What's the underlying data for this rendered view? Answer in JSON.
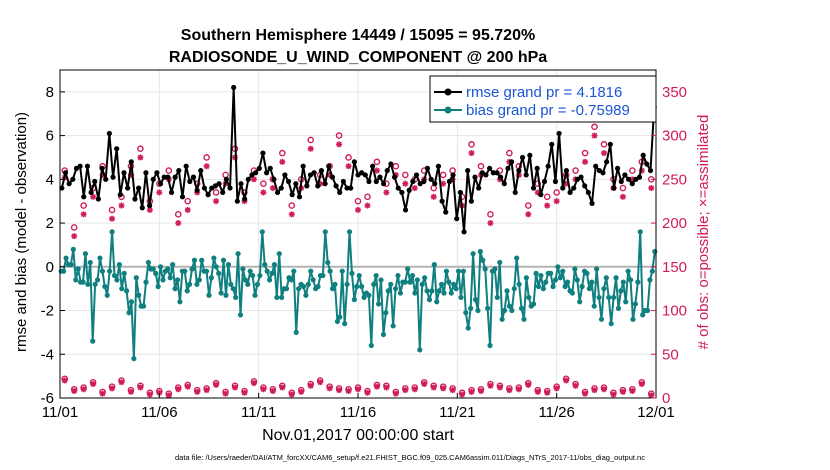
{
  "chart_data": {
    "type": "line",
    "title": "Southern Hemisphere 14449 / 15095 = 95.720%",
    "subtitle": "RADIOSONDE_U_WIND_COMPONENT @ 200 hPa",
    "xlabel": "Nov.01,2017 00:00:00 start",
    "ylabel": "rmse and bias (model - observation)",
    "y2label": "# of obs: o=possible; ×=assimilated",
    "footer": "data file: /Users/raeder/DAI/ATM_forcXX/CAM6_setup/f.e21.FHIST_BGC.f09_025.CAM6assim.011/Diags_NTrS_2017-11/obs_diag_output.nc",
    "xlim": [
      0,
      30
    ],
    "ylim": [
      -6,
      9
    ],
    "y2lim": [
      0,
      375
    ],
    "x_tick_values": [
      0,
      5,
      10,
      15,
      20,
      25,
      30
    ],
    "x_tick_labels": [
      "11/01",
      "11/06",
      "11/11",
      "11/16",
      "11/21",
      "11/26",
      "12/01"
    ],
    "y_ticks": [
      "-6",
      "-4",
      "-2",
      "0",
      "2",
      "4",
      "6",
      "8"
    ],
    "y_tick_values": [
      -6,
      -4,
      -2,
      0,
      2,
      4,
      6,
      8
    ],
    "y2_ticks": [
      "0",
      "50",
      "100",
      "150",
      "200",
      "250",
      "300",
      "350"
    ],
    "y2_tick_values": [
      0,
      50,
      100,
      150,
      200,
      250,
      300,
      350
    ],
    "legend_position": "top-right",
    "colors": {
      "rmse": "#000000",
      "bias": "#0f7f7f",
      "obs": "#d01c5a",
      "zero_line": "#b3b3b3",
      "legend_text": "#1a55d6"
    },
    "series": [
      {
        "name": "rmse grand pr = 4.1816",
        "values": [
          3.6,
          4.3,
          3.8,
          4.0,
          4.5,
          4.6,
          3.2,
          4.6,
          3.4,
          3.9,
          3.1,
          4.5,
          4.0,
          6.1,
          4.1,
          5.4,
          3.3,
          4.3,
          3.6,
          4.8,
          3.1,
          3.6,
          2.7,
          4.3,
          2.8,
          4.0,
          4.3,
          3.8,
          4.1,
          4.1,
          3.4,
          4.1,
          4.4,
          3.2,
          4.6,
          3.9,
          4.1,
          3.5,
          4.4,
          3.6,
          3.3,
          3.6,
          3.7,
          3.8,
          3.4,
          4.0,
          3.6,
          8.2,
          3.0,
          3.8,
          3.1,
          4.0,
          4.2,
          4.3,
          4.5,
          5.2,
          4.3,
          4.5,
          4.0,
          3.4,
          3.6,
          4.2,
          3.9,
          3.3,
          3.8,
          3.2,
          4.6,
          3.7,
          4.2,
          4.3,
          3.7,
          4.4,
          3.8,
          4.6,
          4.1,
          3.7,
          3.4,
          3.9,
          3.6,
          3.6,
          4.8,
          4.2,
          4.3,
          4.2,
          3.9,
          4.6,
          3.9,
          4.1,
          3.8,
          4.4,
          4.7,
          4.1,
          3.6,
          3.4,
          2.6,
          3.5,
          3.9,
          4.2,
          3.8,
          3.9,
          4.5,
          4.0,
          3.8,
          4.6,
          3.0,
          2.5,
          3.9,
          4.2,
          2.2,
          3.4,
          1.6,
          4.4,
          3.0,
          4.1,
          3.6,
          4.3,
          4.2,
          4.5,
          4.3,
          4.3,
          4.1,
          3.8,
          4.5,
          4.8,
          3.4,
          4.4,
          5.0,
          4.2,
          5.1,
          3.6,
          4.5,
          3.3,
          3.9,
          4.6,
          5.6,
          3.9,
          6.1,
          3.6,
          4.4,
          3.4,
          3.6,
          4.0,
          4.1,
          3.7,
          3.4,
          2.9,
          4.6,
          4.4,
          4.3,
          4.8,
          5.6,
          3.6,
          4.5,
          3.9,
          4.2,
          4.0,
          3.8,
          4.0,
          4.1,
          5.1,
          4.7,
          4.4,
          7.3
        ],
        "color": "#000000"
      },
      {
        "name": "bias grand pr = -0.75989",
        "values": [
          -0.2,
          -0.2,
          0.4,
          0.1,
          0.1,
          0.8,
          -0.6,
          -0.1,
          -0.7,
          -0.7,
          0.6,
          -0.8,
          0.2,
          -3.4,
          -0.8,
          -0.6,
          0.4,
          -0.2,
          -0.9,
          -1.3,
          -0.2,
          1.6,
          -0.4,
          -0.6,
          0.1,
          -1.0,
          -0.3,
          -1.1,
          -2.1,
          -1.6,
          -4.2,
          -0.5,
          -1.3,
          -1.8,
          -1.8,
          -0.7,
          0.2,
          -0.1,
          -0.1,
          -0.3,
          -0.9,
          0.0,
          -0.6,
          -0.2,
          -0.1,
          -0.5,
          0.1,
          -1.0,
          -0.6,
          -1.6,
          -0.2,
          -0.2,
          -1.1,
          -0.8,
          -0.1,
          0.3,
          -0.8,
          -0.6,
          0.3,
          -0.2,
          -0.2,
          -1.3,
          -0.5,
          0.4,
          0.0,
          -0.3,
          -1.2,
          0.3,
          -1.3,
          0.1,
          -0.8,
          -1.0,
          -1.4,
          0.6,
          -2.2,
          -0.1,
          -0.6,
          -0.8,
          -0.2,
          -0.4,
          -1.3,
          -0.8,
          -0.4,
          1.6,
          0.1,
          -0.2,
          -0.6,
          -0.3,
          0.1,
          -1.4,
          0.6,
          -1.4,
          -1.0,
          -1.0,
          -0.5,
          -0.6,
          -0.2,
          -3.0,
          -1.0,
          -0.8,
          -0.9,
          -1.3,
          -0.8,
          -0.2,
          -0.6,
          -1.0,
          -0.9,
          -0.4,
          -0.4,
          1.6,
          0.2,
          -0.2,
          -1.0,
          -0.8,
          -2.5,
          -2.3,
          -0.2,
          -2.6,
          -0.8,
          1.6,
          -0.3,
          -1.5,
          -0.9,
          -0.4,
          -0.9,
          -1.4,
          -1.2,
          -1.3,
          -3.6,
          -0.8,
          -0.4,
          -1.7,
          -0.6,
          -3.1,
          -2.1,
          -1.1,
          -0.8,
          -2.7,
          -1.0,
          -0.4,
          -1.2,
          -0.7,
          -0.7,
          -0.1,
          -0.7,
          -0.4,
          -1.2,
          -0.6,
          -3.8,
          -0.8,
          -0.5,
          -1.1,
          -1.5,
          -1.1,
          0.1,
          -1.6,
          -1.1,
          -0.8,
          -1.2,
          -0.2,
          -0.7,
          -1.2,
          -0.8,
          -1.0,
          -0.2,
          -1.4,
          -0.2,
          -2.1,
          -2.8,
          -1.9,
          0.6,
          -1.5,
          -2.0,
          0.7,
          0.3,
          -0.1,
          -1.9,
          -3.6,
          -0.2,
          -0.1,
          -1.4,
          0.2,
          -2.4,
          -2.0,
          -1.1,
          -1.8,
          -2.0,
          -1.0,
          0.4,
          -0.8,
          -1.9,
          -2.4,
          -0.5,
          -1.4,
          -1.8,
          -1.7,
          -0.3,
          -0.9,
          -0.4,
          -1.0,
          -0.7,
          -0.3,
          -0.3,
          -0.9,
          -0.6,
          0.0,
          -0.5,
          -0.2,
          -0.9,
          -0.7,
          -1.1,
          -1.2,
          -0.1,
          -0.6,
          -1.6,
          -0.9,
          -0.2,
          -0.3,
          -1.0,
          -0.7,
          -1.8,
          -0.1,
          -1.4,
          -2.4,
          -1.0,
          -0.5,
          -1.4,
          -2.6,
          -1.4,
          -0.5,
          -1.9,
          -1.1,
          -0.7,
          -1.6,
          -0.2,
          -0.6,
          -2.4,
          -1.7,
          -0.7,
          1.6,
          -2.2,
          -2.0,
          -2.0,
          -0.6,
          -0.2,
          0.7
        ],
        "color": "#0f7f7f"
      },
      {
        "name": "obs possible (o)",
        "values_low": [
          22,
          10,
          12,
          18,
          7,
          13,
          20,
          9,
          14,
          6,
          8,
          5,
          12,
          15,
          9,
          11,
          17,
          7,
          14,
          8,
          19,
          12,
          10,
          14,
          6,
          9,
          16,
          20,
          13,
          11,
          10,
          12,
          8,
          15,
          14,
          7,
          11,
          12,
          18,
          14,
          13,
          11,
          6,
          9,
          10,
          16,
          14,
          11,
          12,
          17,
          9,
          8,
          13,
          22,
          16,
          7,
          11,
          12,
          6,
          9,
          10,
          18,
          5
        ],
        "values_high": [
          260,
          195,
          220,
          240,
          265,
          215,
          230,
          265,
          285,
          225,
          245,
          260,
          210,
          225,
          245,
          275,
          235,
          255,
          285,
          235,
          260,
          245,
          250,
          280,
          220,
          250,
          295,
          255,
          265,
          300,
          275,
          225,
          230,
          270,
          245,
          265,
          255,
          250,
          260,
          240,
          255,
          260,
          230,
          290,
          265,
          210,
          260,
          280,
          265,
          220,
          245,
          230,
          235,
          255,
          260,
          280,
          310,
          290,
          250,
          240,
          260,
          270,
          250
        ],
        "color": "#d01c5a"
      },
      {
        "name": "obs assimilated (×)",
        "values_low": [
          20,
          8,
          10,
          16,
          5,
          11,
          18,
          7,
          12,
          4,
          6,
          3,
          10,
          13,
          7,
          9,
          15,
          5,
          12,
          6,
          17,
          10,
          8,
          12,
          4,
          7,
          14,
          18,
          11,
          9,
          8,
          10,
          6,
          13,
          12,
          5,
          9,
          10,
          16,
          12,
          11,
          9,
          4,
          7,
          8,
          14,
          12,
          9,
          10,
          15,
          7,
          6,
          11,
          20,
          14,
          5,
          9,
          10,
          4,
          7,
          8,
          16,
          3
        ],
        "values_high": [
          252,
          185,
          210,
          230,
          255,
          205,
          220,
          255,
          275,
          215,
          235,
          250,
          200,
          215,
          235,
          265,
          225,
          245,
          275,
          225,
          250,
          235,
          240,
          270,
          210,
          240,
          285,
          245,
          255,
          290,
          265,
          215,
          220,
          260,
          235,
          255,
          245,
          240,
          250,
          230,
          245,
          250,
          220,
          280,
          255,
          200,
          250,
          270,
          255,
          210,
          235,
          220,
          225,
          245,
          250,
          270,
          300,
          280,
          240,
          230,
          250,
          260,
          240
        ],
        "color": "#d01c5a"
      }
    ]
  }
}
